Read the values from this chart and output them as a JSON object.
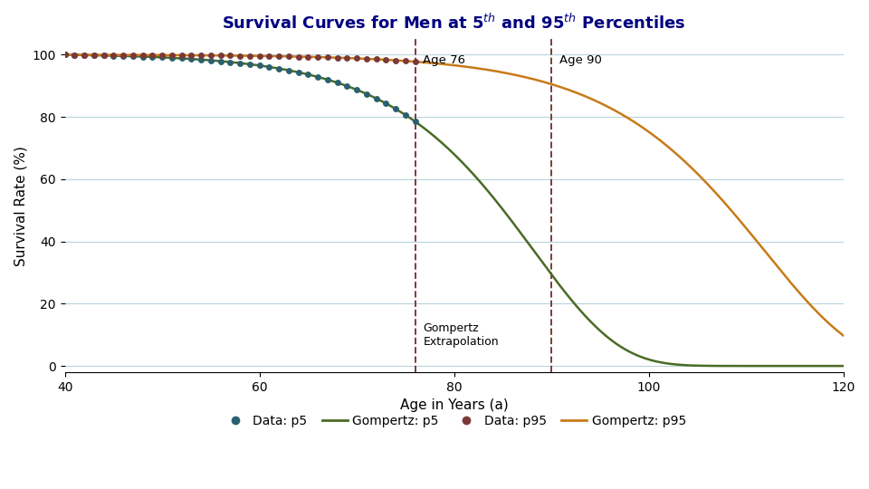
{
  "title": "Survival Curves for Men at 5$^{th}$ and 95$^{th}$ Percentiles",
  "xlabel": "Age in Years (a)",
  "ylabel": "Survival Rate (%)",
  "xlim": [
    40,
    120
  ],
  "ylim": [
    -2,
    105
  ],
  "yticks": [
    0,
    20,
    40,
    60,
    80,
    100
  ],
  "xticks": [
    40,
    60,
    80,
    100,
    120
  ],
  "vline_age76": 76,
  "vline_age90": 90,
  "vline_color": "#7B3B3B",
  "annotation_age76": "Age 76",
  "annotation_age90": "Age 90",
  "annotation_gompertz": "Gompertz\nExtrapolation",
  "color_p5_data": "#2A6070",
  "color_p5_gompertz": "#4A6B25",
  "color_p95_data": "#7B3838",
  "color_p95_gompertz": "#C87A18",
  "background_color": "#FFFFFF",
  "grid_color": "#B8D4DC",
  "b_p5": 0.00045,
  "c_p5": 0.115,
  "b_p95": 5.5e-05,
  "c_p95": 0.105,
  "data_p5_x_end": 76,
  "data_p95_x_end": 76,
  "legend_labels": [
    "Data: p5",
    "Gompertz: p5",
    "Data: p95",
    "Gompertz: p95"
  ]
}
